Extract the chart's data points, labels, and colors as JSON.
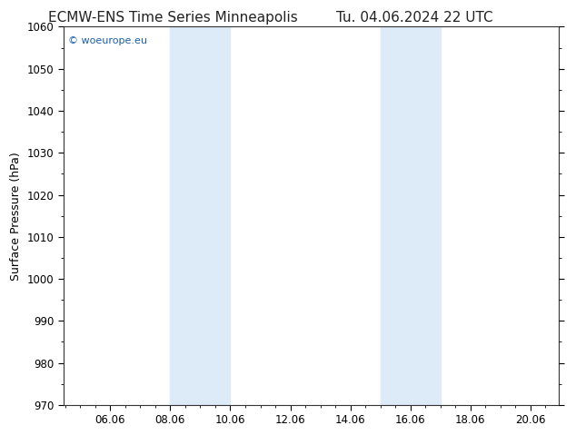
{
  "title_left": "ECMW-ENS Time Series Minneapolis",
  "title_right": "Tu. 04.06.2024 22 UTC",
  "ylabel": "Surface Pressure (hPa)",
  "ylim": [
    970,
    1060
  ],
  "yticks": [
    970,
    980,
    990,
    1000,
    1010,
    1020,
    1030,
    1040,
    1050,
    1060
  ],
  "xlim": [
    4.5,
    21.0
  ],
  "xticks": [
    6.06,
    8.06,
    10.06,
    12.06,
    14.06,
    16.06,
    18.06,
    20.06
  ],
  "xticklabels": [
    "06.06",
    "08.06",
    "10.06",
    "12.06",
    "14.06",
    "16.06",
    "18.06",
    "20.06"
  ],
  "shaded_bands": [
    {
      "x_start": 8.06,
      "x_end": 10.06
    },
    {
      "x_start": 15.06,
      "x_end": 17.06
    }
  ],
  "shaded_color": "#ddeaf7",
  "background_color": "#ffffff",
  "watermark": "© woeurope.eu",
  "watermark_color": "#1a5fa8",
  "title_fontsize": 11,
  "ylabel_fontsize": 9,
  "tick_fontsize": 8.5
}
